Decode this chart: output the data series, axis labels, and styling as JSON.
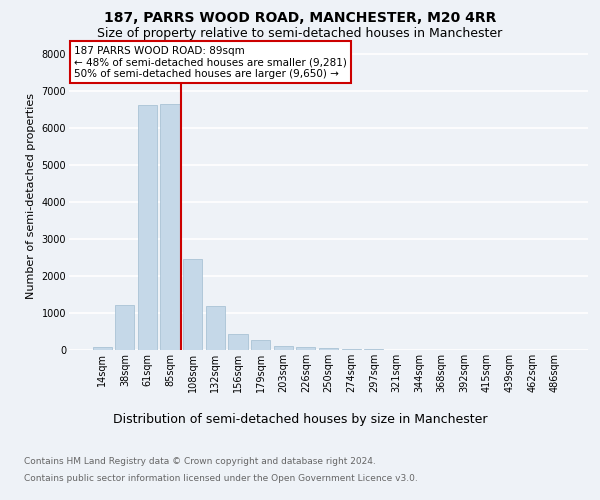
{
  "title": "187, PARRS WOOD ROAD, MANCHESTER, M20 4RR",
  "subtitle": "Size of property relative to semi-detached houses in Manchester",
  "xlabel": "Distribution of semi-detached houses by size in Manchester",
  "ylabel": "Number of semi-detached properties",
  "footnote1": "Contains HM Land Registry data © Crown copyright and database right 2024.",
  "footnote2": "Contains public sector information licensed under the Open Government Licence v3.0.",
  "categories": [
    "14sqm",
    "38sqm",
    "61sqm",
    "85sqm",
    "108sqm",
    "132sqm",
    "156sqm",
    "179sqm",
    "203sqm",
    "226sqm",
    "250sqm",
    "274sqm",
    "297sqm",
    "321sqm",
    "344sqm",
    "368sqm",
    "392sqm",
    "415sqm",
    "439sqm",
    "462sqm",
    "486sqm"
  ],
  "values": [
    70,
    1220,
    6600,
    6650,
    2450,
    1190,
    430,
    260,
    120,
    80,
    55,
    30,
    20,
    5,
    2,
    2,
    1,
    1,
    0,
    0,
    0
  ],
  "bar_color": "#c5d8e8",
  "bar_edge_color": "#a0bcd0",
  "property_line_color": "#cc0000",
  "annotation_text": "187 PARRS WOOD ROAD: 89sqm\n← 48% of semi-detached houses are smaller (9,281)\n50% of semi-detached houses are larger (9,650) →",
  "annotation_box_color": "#ffffff",
  "annotation_box_edge_color": "#cc0000",
  "ylim": [
    0,
    8300
  ],
  "background_color": "#eef2f7",
  "axes_background_color": "#eef2f7",
  "grid_color": "#ffffff",
  "title_fontsize": 10,
  "subtitle_fontsize": 9,
  "xlabel_fontsize": 9,
  "ylabel_fontsize": 8,
  "tick_fontsize": 7,
  "footnote_fontsize": 6.5,
  "annotation_fontsize": 7.5
}
